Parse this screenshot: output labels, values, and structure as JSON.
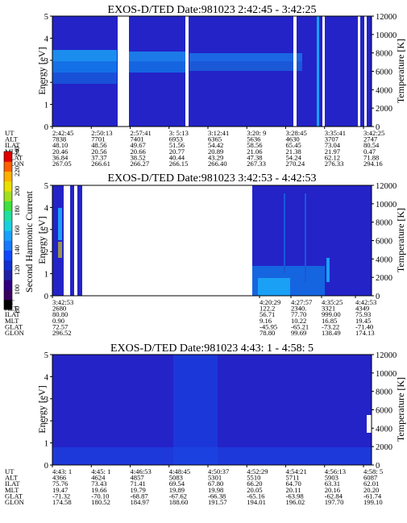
{
  "chart_data": [
    {
      "type": "heatmap",
      "title": "EXOS-D/TED   Date:981023  2:42:45 - 3:42:25",
      "ylabel": "Energy [eV]",
      "ylabel_right": "Temperature [K]",
      "ylim": [
        0,
        5
      ],
      "ylim_right": [
        0,
        12000
      ],
      "yticks": [
        "0",
        "1",
        "2",
        "3",
        "4",
        "5"
      ],
      "yticks_right": [
        "0",
        "2000",
        "4000",
        "6000",
        "8000",
        "10000",
        "12000"
      ],
      "row_labels": [
        "UT",
        "ALT",
        "ILAT",
        "MLT",
        "GLAT",
        "GLON"
      ],
      "columns": [
        [
          "2:42:45",
          "7838",
          "48.10",
          "20.46",
          "36.84",
          "267.05"
        ],
        [
          "2:50:13",
          "7701",
          "48.56",
          "20.56",
          "37.37",
          "266.61"
        ],
        [
          "2:57:41",
          "7401",
          "49.67",
          "20.66",
          "38.52",
          "266.27"
        ],
        [
          "3: 5:13",
          "6953",
          "51.56",
          "20.77",
          "40.44",
          "266.15"
        ],
        [
          "3:12:41",
          "6365",
          "54.42",
          "20.89",
          "43.29",
          "266.40"
        ],
        [
          "3:20: 9",
          "5636",
          "58.56",
          "21.06",
          "47.38",
          "267.33"
        ],
        [
          "3:28:45",
          "4630",
          "65.45",
          "21.38",
          "54.24",
          "270.24"
        ],
        [
          "3:35:41",
          "3707",
          "73.04",
          "21.97",
          "62.12",
          "276.33"
        ],
        [
          "3:42:25",
          "2747",
          "80.54",
          "0.47",
          "71.88",
          "294.16"
        ]
      ]
    },
    {
      "type": "heatmap",
      "title": "EXOS-D/TED   Date:981023  3:42:53 - 4:42:53",
      "ylabel": "Energy [eV]",
      "ylabel_right": "Temperature [K]",
      "ylim": [
        0,
        5
      ],
      "ylim_right": [
        0,
        12000
      ],
      "yticks": [
        "0",
        "1",
        "2",
        "3",
        "4",
        "5"
      ],
      "yticks_right": [
        "0",
        "2000",
        "4000",
        "6000",
        "8000",
        "10000",
        "12000"
      ],
      "row_labels": [
        "UT",
        "ALT",
        "ILAT",
        "MLT",
        "GLAT",
        "GLON"
      ],
      "columns": [
        [
          "3:42:53",
          "2680",
          "80.80",
          "0.90",
          "72.57",
          "296.52"
        ],
        [
          "4:20:29",
          "122.2",
          "56.71",
          "9.16",
          "-45.95",
          "78.80"
        ],
        [
          "4:27:57",
          "2340.",
          "77.70",
          "10.22",
          "-65.21",
          "99.69"
        ],
        [
          "4:35:25",
          "3321",
          "999.00",
          "16.85",
          "-73.22",
          "138.49"
        ],
        [
          "4:42:53",
          "4349",
          "75.93",
          "19.45",
          "-71.40",
          "174.13"
        ]
      ]
    },
    {
      "type": "heatmap",
      "title": "EXOS-D/TED   Date:981023  4:43: 1 - 4:58: 5",
      "ylabel": "Energy [eV]",
      "ylabel_right": "Temperature [K]",
      "ylim": [
        0,
        5
      ],
      "ylim_right": [
        0,
        12000
      ],
      "yticks": [
        "0",
        "1",
        "2",
        "3",
        "4",
        "5"
      ],
      "yticks_right": [
        "0",
        "2000",
        "4000",
        "6000",
        "8000",
        "10000",
        "12000"
      ],
      "row_labels": [
        "UT",
        "ALT",
        "ILAT",
        "MLT",
        "GLAT",
        "GLON"
      ],
      "columns": [
        [
          "4:43: 1",
          "4366",
          "75.76",
          "19.47",
          "-71.32",
          "174.58"
        ],
        [
          "4:45: 1",
          "4624",
          "73.43",
          "19.66",
          "-70.10",
          "180.52"
        ],
        [
          "4:46:53",
          "4857",
          "71.41",
          "19.79",
          "-68.87",
          "184.97"
        ],
        [
          "4:48:45",
          "5083",
          "69.54",
          "19.89",
          "-67.62",
          "188.60"
        ],
        [
          "4:50:37",
          "5301",
          "67.80",
          "19.98",
          "-66.38",
          "191.57"
        ],
        [
          "4:52:29",
          "5510",
          "66.20",
          "20.05",
          "-65.16",
          "194.01"
        ],
        [
          "4:54:21",
          "5711",
          "64.70",
          "20.11",
          "-63.98",
          "196.02"
        ],
        [
          "4:56:13",
          "5903",
          "63.31",
          "20.16",
          "-62.84",
          "197.70"
        ],
        [
          "4:58: 5",
          "6087",
          "62.01",
          "20.20",
          "-61.74",
          "199.10"
        ]
      ]
    }
  ],
  "colorbar": {
    "label": "Second Harmonic Current",
    "ticks": [
      "80",
      "100",
      "120",
      "140",
      "160",
      "180",
      "200",
      "220",
      "240"
    ],
    "colors": [
      "#000000",
      "#3a0060",
      "#30007f",
      "#1f1fa8",
      "#1030d0",
      "#1048ff",
      "#1878ff",
      "#18a0ff",
      "#18d0e0",
      "#20e0a0",
      "#40e040",
      "#a0e020",
      "#e8e000",
      "#ffb000",
      "#ff6000",
      "#e00000"
    ]
  },
  "colors": {
    "background": "#2323c8",
    "band_light": "#1aa0f5",
    "band_mid": "#1470e6",
    "band_dark": "#1050d8",
    "gap": "#ffffff"
  }
}
